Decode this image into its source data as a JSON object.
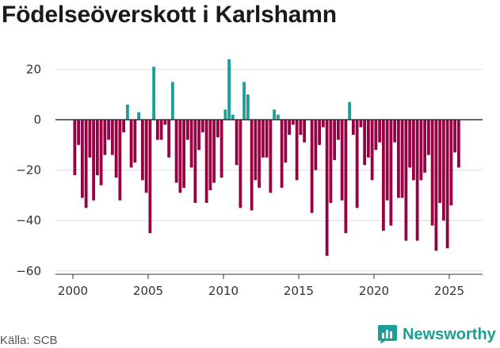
{
  "title": "Födelseöverskott i Karlshamn",
  "source": "Källa: SCB",
  "brand": {
    "name": "Newsworthy",
    "logo_icon": "bar-chart-logo-icon"
  },
  "colors": {
    "positive": "#1a9e98",
    "negative": "#990044",
    "grid": "#dddddd",
    "zero_line": "#333333"
  },
  "chart_data": {
    "type": "bar",
    "title": "Födelseöverskott i Karlshamn",
    "xlabel": "",
    "ylabel": "",
    "x_ticks": [
      2000,
      2005,
      2010,
      2015,
      2020,
      2025
    ],
    "y_ticks": [
      20,
      0,
      -20,
      -40,
      -60
    ],
    "y_tick_labels": [
      "20",
      "0",
      "−20",
      "−40",
      "−60"
    ],
    "xlim": [
      "2000-01",
      "2025-12"
    ],
    "ylim": [
      -62,
      27
    ],
    "grid": "horizontal",
    "frequency": "quarterly",
    "x_start": "2000-Q1",
    "values": [
      -22,
      -10,
      -31,
      -35,
      -15,
      -32,
      -22,
      -26,
      -14,
      -8,
      -14,
      -23,
      -32,
      -5,
      6,
      -19,
      -17,
      3,
      -24,
      -29,
      -45,
      21,
      -8,
      -8,
      -2,
      -15,
      15,
      -25,
      -29,
      -27,
      -8,
      -19,
      -33,
      -12,
      -5,
      -33,
      -28,
      -25,
      -7,
      -23,
      4,
      24,
      2,
      -18,
      -35,
      15,
      10,
      -36,
      -24,
      -27,
      -15,
      -15,
      -29,
      4,
      2,
      -27,
      -17,
      -6,
      -2,
      -24,
      -6,
      -9,
      0,
      -37,
      -20,
      -10,
      -3,
      -54,
      -33,
      -16,
      -8,
      -32,
      -45,
      7,
      -6,
      -35,
      -3,
      -18,
      -15,
      -24,
      -12,
      -9,
      -44,
      -32,
      -42,
      -9,
      -31,
      -31,
      -48,
      -19,
      -24,
      -48,
      -24,
      -21,
      -14,
      -42,
      -52,
      -33,
      -40,
      -51,
      -34,
      -13,
      -19
    ]
  }
}
